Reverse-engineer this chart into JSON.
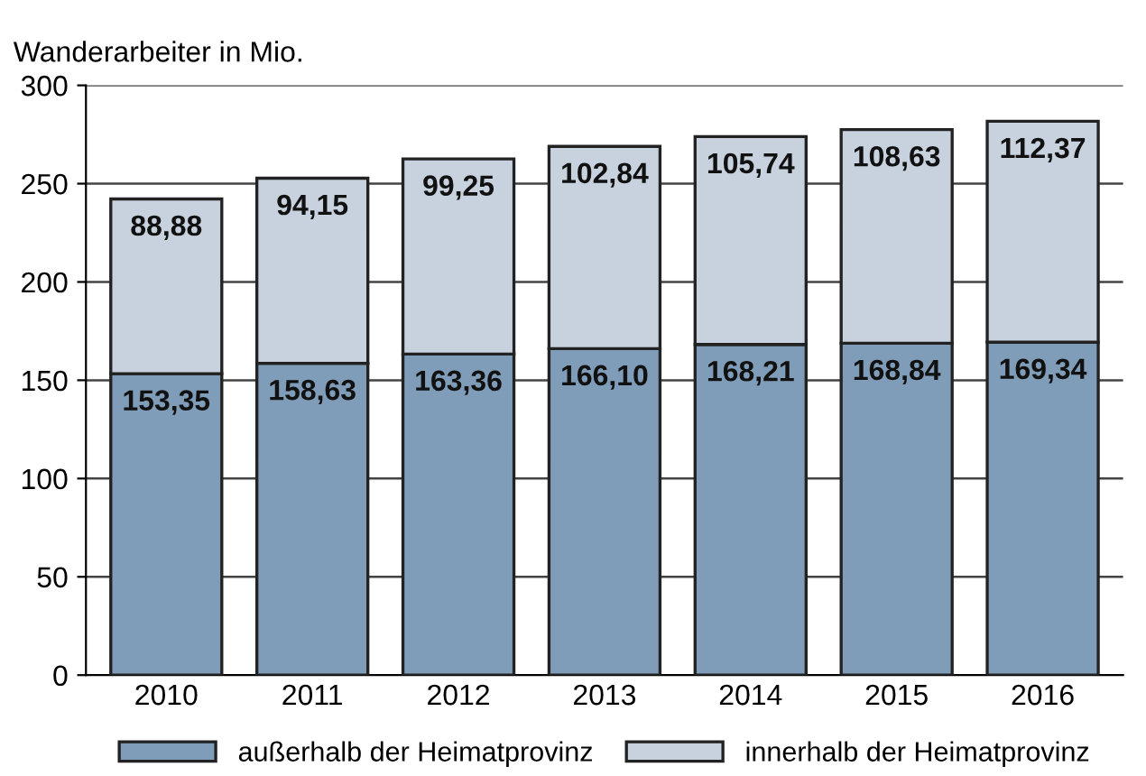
{
  "chart_data": {
    "type": "bar",
    "ylabel": "Wanderarbeiter in Mio.",
    "stacked": true,
    "categories": [
      "2010",
      "2011",
      "2012",
      "2013",
      "2014",
      "2015",
      "2016"
    ],
    "series": [
      {
        "name": "außerhalb der Heimatprovinz",
        "color": "#7f9cb8",
        "values": [
          153.35,
          158.63,
          163.36,
          166.1,
          168.21,
          168.84,
          169.34
        ],
        "value_labels": [
          "153,35",
          "158,63",
          "163,36",
          "166,10",
          "168,21",
          "168,84",
          "169,34"
        ]
      },
      {
        "name": "innerhalb der Heimatprovinz",
        "color": "#c8d2df",
        "values": [
          88.88,
          94.15,
          99.25,
          102.84,
          105.74,
          108.63,
          112.37
        ],
        "value_labels": [
          "88,88",
          "94,15",
          "99,25",
          "102,84",
          "105,74",
          "108,63",
          "112,37"
        ]
      }
    ],
    "ylim": [
      0,
      300
    ],
    "yticks": [
      0,
      50,
      100,
      150,
      200,
      250,
      300
    ],
    "grid": "y",
    "legend": "bottom"
  }
}
